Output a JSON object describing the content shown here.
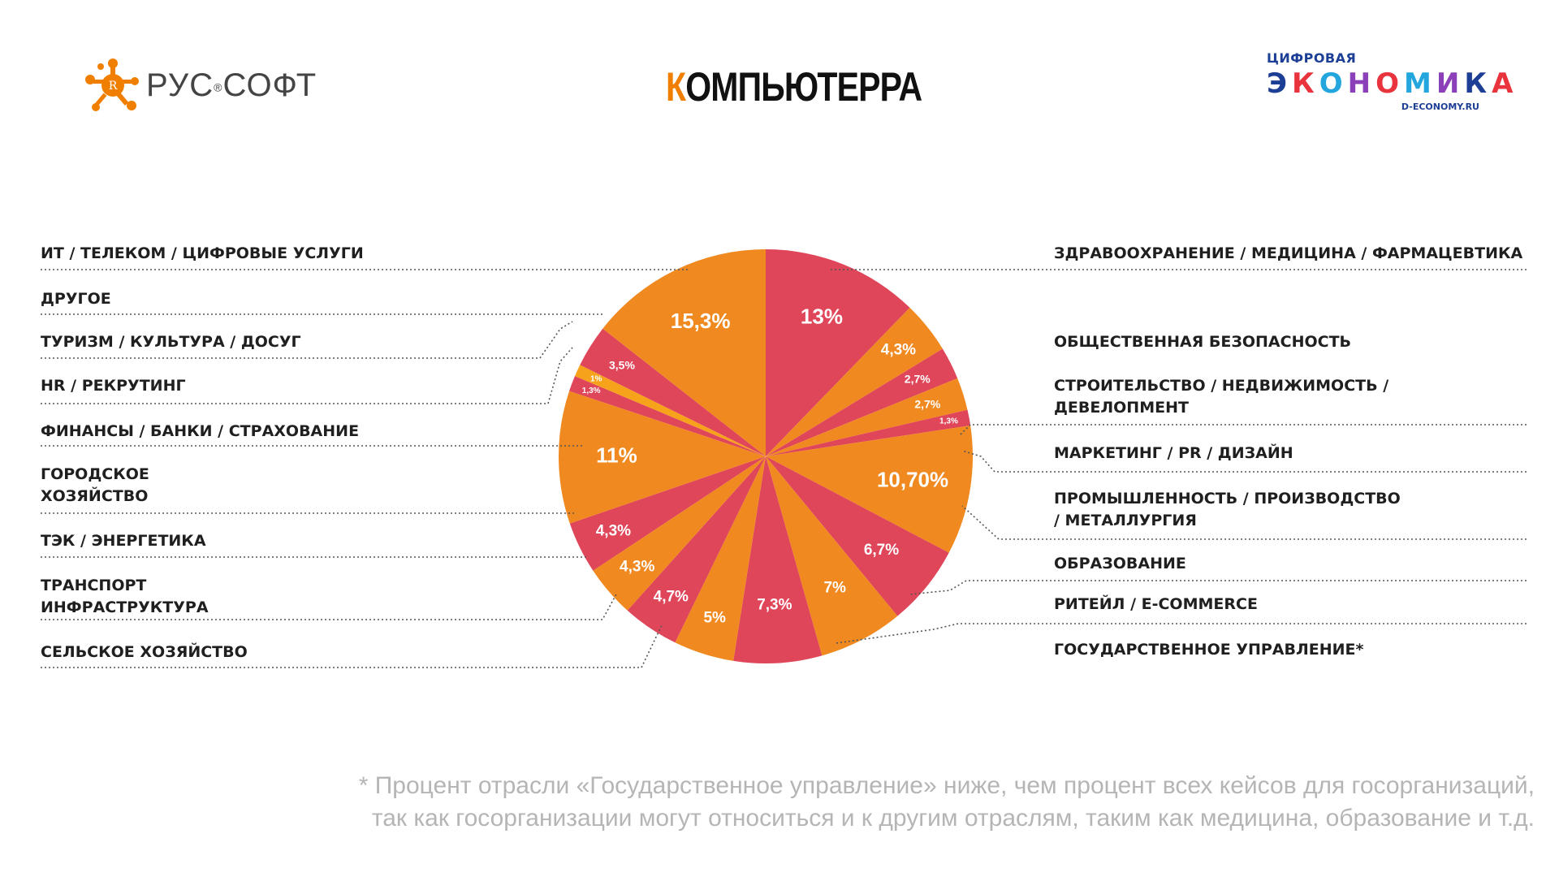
{
  "logos": {
    "left": {
      "text": "РУС",
      "reg": "®",
      "text2": "СОФТ"
    },
    "center": {
      "first_letter": "К",
      "rest": "ОМПЬЮТЕРРА"
    },
    "right": {
      "top": "ЦИФРОВАЯ",
      "mid": "ЭКОНОМИКА",
      "bottom": "D-ECONOMY.RU"
    }
  },
  "colors": {
    "orange": "#f0891f",
    "red": "#e0465a",
    "gold": "#f7a21b"
  },
  "chart_data": {
    "type": "pie",
    "title": "",
    "start": "12 o'clock, clockwise",
    "slices": [
      {
        "label": "ЗДРАВООХРАНЕНИЕ / МЕДИЦИНА / ФАРМАЦЕВТИКА",
        "value": 13,
        "display": "13%",
        "color": "red"
      },
      {
        "label": "ОБЩЕСТВЕННАЯ БЕЗОПАСНОСТЬ",
        "value": 4.3,
        "display": "4,3%",
        "color": "orange"
      },
      {
        "label": "СТРОИТЕЛЬСТВО / НЕДВИЖИМОСТЬ / ДЕВЕЛОПМЕНТ",
        "value": 2.7,
        "display": "2,7%",
        "color": "red"
      },
      {
        "label": "МАРКЕТИНГ / PR / ДИЗАЙН",
        "value": 2.7,
        "display": "2,7%",
        "color": "orange"
      },
      {
        "label": "ПРОМЫШЛЕННОСТЬ / ПРОИЗВОДСТВО / МЕТАЛЛУРГИЯ",
        "value": 1.3,
        "display": "1,3%",
        "color": "red"
      },
      {
        "label": "ОБРАЗОВАНИЕ",
        "value": 10.7,
        "display": "10,70%",
        "color": "orange"
      },
      {
        "label": "РИТЕЙЛ / E-COMMERCE",
        "value": 6.7,
        "display": "6,7%",
        "color": "red"
      },
      {
        "label": "ГОСУДАРСТВЕННОЕ УПРАВЛЕНИЕ*",
        "value": 7,
        "display": "7%",
        "color": "orange"
      },
      {
        "label": "СЕЛЬСКОЕ ХОЗЯЙСТВО",
        "value": 7.3,
        "display": "7,3%",
        "color": "red"
      },
      {
        "label": "ТРАНСПОРТ ИНФРАСТРУКТУРА",
        "value": 5,
        "display": "5%",
        "color": "orange"
      },
      {
        "label": "ТЭК / ЭНЕРГЕТИКА",
        "value": 4.7,
        "display": "4,7%",
        "color": "red"
      },
      {
        "label": "ГОРОДСКОЕ ХОЗЯЙСТВО",
        "value": 4.3,
        "display": "4,3%",
        "color": "orange"
      },
      {
        "label": "ФИНАНСЫ / БАНКИ / СТРАХОВАНИЕ",
        "value": 4.3,
        "display": "4,3%",
        "color": "red"
      },
      {
        "label": "HR / РЕКРУТИНГ",
        "value": 11,
        "display": "11%",
        "color": "orange"
      },
      {
        "label": "ТУРИЗМ / КУЛЬТУРА / ДОСУГ",
        "value": 1.3,
        "display": "1,3%",
        "color": "red"
      },
      {
        "label": "ДРУГОЕ",
        "value": 1,
        "display": "1%",
        "color": "gold"
      },
      {
        "label": "ИТ / ТЕЛЕКОМ / ЦИФРОВЫЕ УСЛУГИ",
        "value": 3.5,
        "display": "3,5%",
        "color": "red"
      },
      {
        "label": "ИТ / ТЕЛЕКОМ / ЦИФРОВЫЕ УСЛУГИ (main)",
        "value": 15.3,
        "display": "15,3%",
        "color": "orange"
      }
    ],
    "left_labels": [
      [
        "ИТ / ТЕЛЕКОМ / ЦИФРОВЫЕ УСЛУГИ"
      ],
      [
        "ДРУГОЕ"
      ],
      [
        "ТУРИЗМ / КУЛЬТУРА / ДОСУГ"
      ],
      [
        "HR / РЕКРУТИНГ"
      ],
      [
        "ФИНАНСЫ / БАНКИ / СТРАХОВАНИЕ"
      ],
      [
        "ГОРОДСКОЕ",
        "ХОЗЯЙСТВО"
      ],
      [
        "ТЭК / ЭНЕРГЕТИКА"
      ],
      [
        "ТРАНСПОРТ",
        "ИНФРАСТРУКТУРА"
      ],
      [
        "СЕЛЬСКОЕ ХОЗЯЙСТВО"
      ]
    ],
    "right_labels": [
      [
        "ЗДРАВООХРАНЕНИЕ / МЕДИЦИНА / ФАРМАЦЕВТИКА"
      ],
      [
        "ОБЩЕСТВЕННАЯ БЕЗОПАСНОСТЬ"
      ],
      [
        "СТРОИТЕЛЬСТВО / НЕДВИЖИМОСТЬ /",
        "ДЕВЕЛОПМЕНТ"
      ],
      [
        "МАРКЕТИНГ / PR / ДИЗАЙН"
      ],
      [
        "ПРОМЫШЛЕННОСТЬ / ПРОИЗВОДСТВО",
        "/ МЕТАЛЛУРГИЯ"
      ],
      [
        "ОБРАЗОВАНИЕ"
      ],
      [
        "РИТЕЙЛ / E-COMMERCE"
      ],
      [
        "ГОСУДАРСТВЕННОЕ УПРАВЛЕНИЕ*"
      ]
    ]
  },
  "footnote": {
    "line1": "* Процент отрасли «Государственное управление» ниже, чем процент всех кейсов для госорганизаций,",
    "line2": "так как госорганизации могут относиться и к другим отраслям, таким как медицина, образование и т.д."
  }
}
